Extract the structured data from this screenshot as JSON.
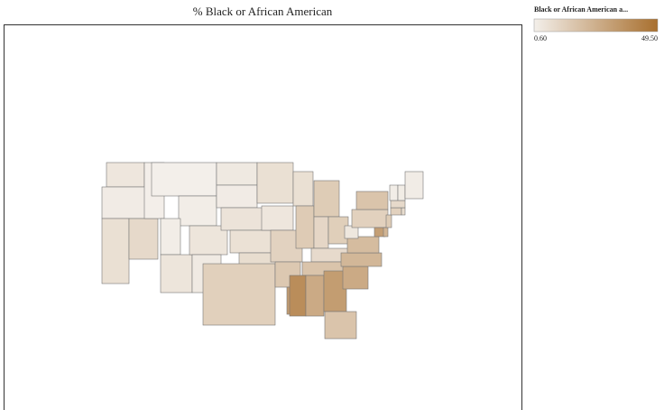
{
  "chart_data": {
    "type": "choropleth",
    "title": "% Black or African American",
    "legend_title": "Black or African American a...",
    "colorscale": [
      "#f3efea",
      "#a86f2e"
    ],
    "clim": [
      0.6,
      49.5
    ],
    "cticks": [
      {
        "value": 0.6,
        "label": "0.60"
      },
      {
        "value": 49.5,
        "label": "49.50"
      }
    ],
    "values": [
      4,
      2,
      6.5,
      9,
      0.9,
      0.6,
      1.3,
      1.3,
      4.5,
      4.5,
      2.5,
      3,
      2,
      5,
      6,
      7.5,
      12.5,
      6.5,
      4,
      11.5,
      15.5,
      32.5,
      6.5,
      14.5,
      14,
      10,
      13,
      8.5,
      17,
      38,
      27,
      32,
      17,
      27,
      22,
      20,
      3.6,
      12,
      17,
      31,
      23,
      14,
      12,
      8,
      9,
      1.4,
      1.9,
      1.6
    ]
  }
}
